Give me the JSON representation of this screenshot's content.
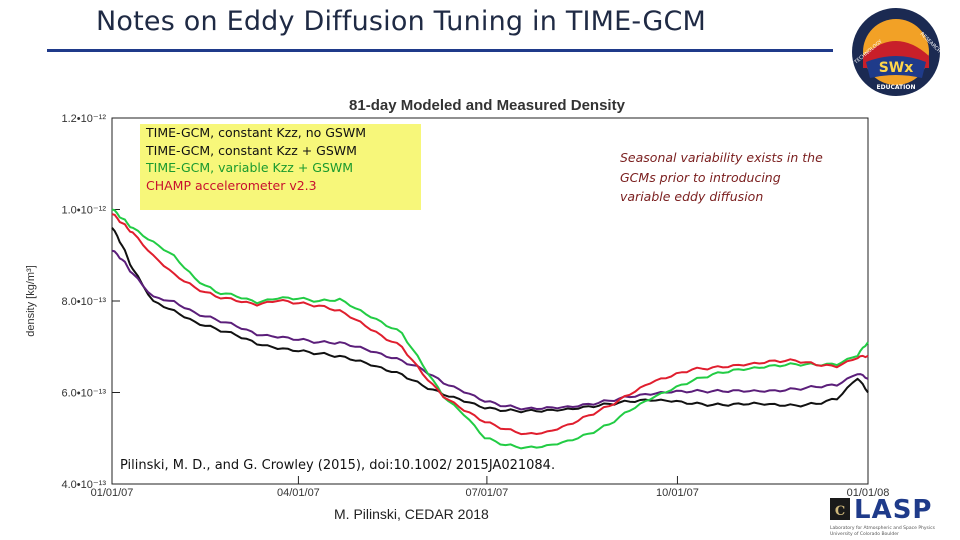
{
  "slide": {
    "title": "Notes on Eddy Diffusion Tuning in TIME-GCM",
    "footer": "M. Pilinski, CEDAR 2018",
    "citation": "Pilinski, M. D., and G. Crowley (2015), doi:10.1002/ 2015JA021084.",
    "note_lines": [
      "Seasonal variability exists in the",
      "GCMs prior to introducing",
      "variable eddy diffusion"
    ]
  },
  "logos": {
    "top_right": {
      "text_main": "SWx",
      "text_sub": "EDUCATION",
      "ring_left": "TECHNOLOGY",
      "ring_right": "RESEARCH"
    },
    "bottom_right": {
      "text": "LASP",
      "subtext_1": "Laboratory for Atmospheric and Space Physics",
      "subtext_2": "University of Colorado Boulder"
    }
  },
  "colors": {
    "title": "#1f2a44",
    "rule": "#1f3a8a",
    "legend_bg": "#f7f77a",
    "note": "#7a1e1e",
    "series_black": "#111111",
    "series_purple": "#5b1e7a",
    "series_green": "#22cc44",
    "series_red": "#e01e2e"
  },
  "chart_data": {
    "type": "line",
    "title": "81-day Modeled and Measured Density",
    "xlabel": "",
    "ylabel": "density [kg/m³]",
    "x_unit": "day of 2007",
    "xlim": [
      0,
      365
    ],
    "ylim": [
      4e-13,
      1.2e-12
    ],
    "x_ticks": [
      {
        "x": 0,
        "label": "01/01/07"
      },
      {
        "x": 90,
        "label": "04/01/07"
      },
      {
        "x": 181,
        "label": "07/01/07"
      },
      {
        "x": 273,
        "label": "10/01/07"
      },
      {
        "x": 365,
        "label": "01/01/08"
      }
    ],
    "y_ticks": [
      {
        "y": 4e-13,
        "label": "4.0•10⁻¹³"
      },
      {
        "y": 6e-13,
        "label": "6.0•10⁻¹³"
      },
      {
        "y": 8e-13,
        "label": "8.0•10⁻¹³"
      },
      {
        "y": 1e-12,
        "label": "1.0•10⁻¹²"
      },
      {
        "y": 1.2e-12,
        "label": "1.2•10⁻¹²"
      }
    ],
    "grid": false,
    "legend_position": "top-left",
    "series": [
      {
        "name": "TIME-GCM, constant Kzz, no GSWM",
        "color": "#111111",
        "x": [
          0,
          5,
          10,
          20,
          30,
          40,
          50,
          60,
          70,
          80,
          90,
          100,
          110,
          120,
          130,
          140,
          150,
          160,
          170,
          180,
          190,
          200,
          210,
          220,
          230,
          240,
          250,
          260,
          270,
          280,
          290,
          300,
          310,
          320,
          330,
          340,
          350,
          360,
          365
        ],
        "y": [
          9.6e-13,
          9.2e-13,
          8.7e-13,
          8e-13,
          7.8e-13,
          7.55e-13,
          7.4e-13,
          7.25e-13,
          7.05e-13,
          6.95e-13,
          6.9e-13,
          6.85e-13,
          6.8e-13,
          6.7e-13,
          6.55e-13,
          6.4e-13,
          6.15e-13,
          5.95e-13,
          5.8e-13,
          5.65e-13,
          5.6e-13,
          5.6e-13,
          5.62e-13,
          5.65e-13,
          5.7e-13,
          5.75e-13,
          5.8e-13,
          5.82e-13,
          5.8e-13,
          5.75e-13,
          5.73e-13,
          5.75e-13,
          5.78e-13,
          5.75e-13,
          5.72e-13,
          5.75e-13,
          5.85e-13,
          6.3e-13,
          6e-13
        ]
      },
      {
        "name": "TIME-GCM, constant Kzz + GSWM",
        "color": "#5b1e7a",
        "x": [
          0,
          5,
          10,
          20,
          30,
          40,
          50,
          60,
          70,
          80,
          90,
          100,
          110,
          120,
          130,
          140,
          150,
          160,
          170,
          180,
          190,
          200,
          210,
          220,
          230,
          240,
          250,
          260,
          270,
          280,
          290,
          300,
          310,
          320,
          330,
          340,
          350,
          360,
          365
        ],
        "y": [
          9.1e-13,
          8.9e-13,
          8.6e-13,
          8.1e-13,
          8e-13,
          7.75e-13,
          7.6e-13,
          7.45e-13,
          7.25e-13,
          7.2e-13,
          7.15e-13,
          7.1e-13,
          7.1e-13,
          7e-13,
          6.85e-13,
          6.7e-13,
          6.5e-13,
          6.2e-13,
          6e-13,
          5.8e-13,
          5.7e-13,
          5.65e-13,
          5.68e-13,
          5.7e-13,
          5.75e-13,
          5.82e-13,
          5.9e-13,
          5.95e-13,
          6e-13,
          6.02e-13,
          6.03e-13,
          6.05e-13,
          6.05e-13,
          6.05e-13,
          6.08e-13,
          6.12e-13,
          6.15e-13,
          6.4e-13,
          6.3e-13
        ]
      },
      {
        "name": "TIME-GCM, variable Kzz + GSWM",
        "color": "#22cc44",
        "x": [
          0,
          5,
          10,
          20,
          30,
          40,
          50,
          60,
          70,
          80,
          90,
          100,
          110,
          120,
          130,
          140,
          150,
          160,
          170,
          180,
          190,
          200,
          210,
          220,
          230,
          240,
          250,
          260,
          270,
          280,
          290,
          300,
          310,
          320,
          330,
          340,
          350,
          360,
          365
        ],
        "y": [
          1e-12,
          9.8e-13,
          9.6e-13,
          9.3e-13,
          9e-13,
          8.5e-13,
          8.2e-13,
          8.1e-13,
          7.95e-13,
          8.05e-13,
          8.05e-13,
          8e-13,
          8.05e-13,
          7.8e-13,
          7.55e-13,
          7.3e-13,
          6.6e-13,
          5.9e-13,
          5.5e-13,
          5e-13,
          4.85e-13,
          4.8e-13,
          4.85e-13,
          4.95e-13,
          5.1e-13,
          5.3e-13,
          5.6e-13,
          5.85e-13,
          6.05e-13,
          6.25e-13,
          6.4e-13,
          6.5e-13,
          6.55e-13,
          6.6e-13,
          6.62e-13,
          6.6e-13,
          6.6e-13,
          6.8e-13,
          7.1e-13
        ]
      },
      {
        "name": "CHAMP accelerometer v2.3",
        "color": "#e01e2e",
        "x": [
          0,
          5,
          10,
          20,
          30,
          40,
          50,
          60,
          70,
          80,
          90,
          100,
          110,
          120,
          130,
          140,
          150,
          160,
          170,
          180,
          190,
          200,
          210,
          220,
          230,
          240,
          250,
          260,
          270,
          280,
          290,
          300,
          310,
          320,
          330,
          340,
          350,
          360,
          365
        ],
        "y": [
          9.9e-13,
          9.7e-13,
          9.5e-13,
          9e-13,
          8.6e-13,
          8.3e-13,
          8.1e-13,
          8e-13,
          7.9e-13,
          8e-13,
          7.95e-13,
          7.9e-13,
          7.8e-13,
          7.55e-13,
          7.25e-13,
          7e-13,
          6.4e-13,
          5.9e-13,
          5.6e-13,
          5.35e-13,
          5.2e-13,
          5.1e-13,
          5.15e-13,
          5.3e-13,
          5.5e-13,
          5.7e-13,
          5.95e-13,
          6.2e-13,
          6.35e-13,
          6.5e-13,
          6.55e-13,
          6.6e-13,
          6.65e-13,
          6.7e-13,
          6.7e-13,
          6.6e-13,
          6.55e-13,
          6.75e-13,
          6.8e-13
        ]
      }
    ],
    "legend_entries": [
      {
        "label": "TIME-GCM, constant Kzz, no GSWM",
        "color": "#111111"
      },
      {
        "label": "TIME-GCM, constant Kzz + GSWM",
        "color": "#5b1e7a"
      },
      {
        "label": "TIME-GCM, variable Kzz + GSWM",
        "color": "#22cc44"
      },
      {
        "label": "CHAMP accelerometer v2.3",
        "color": "#e01e2e"
      }
    ]
  }
}
